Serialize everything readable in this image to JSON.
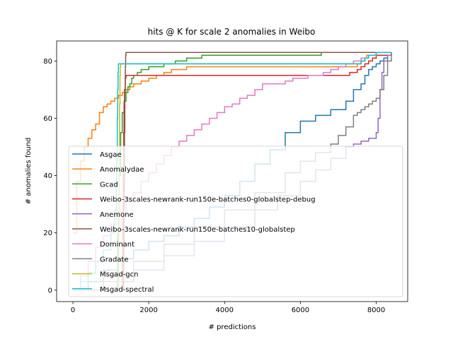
{
  "chart_data": {
    "type": "line",
    "title": "hits @ K for scale 2 anomalies in Weibo",
    "xlabel": "# predictions",
    "ylabel": "# anomalies found",
    "xlim": [
      -430,
      8830
    ],
    "ylim": [
      -4,
      87
    ],
    "xticks": [
      0,
      2000,
      4000,
      6000,
      8000
    ],
    "yticks": [
      0,
      20,
      40,
      60,
      80
    ],
    "grid": false,
    "legend_position": "lower-left",
    "series": [
      {
        "name": "Asgae",
        "color": "#1f77b4",
        "x": [
          0,
          400,
          800,
          1200,
          1600,
          2000,
          2400,
          2800,
          3200,
          3600,
          4000,
          4400,
          4800,
          5200,
          5600,
          6000,
          6400,
          6800,
          7200,
          7400,
          7600,
          7700,
          7800,
          7900,
          8000,
          8100,
          8200,
          8300,
          8400
        ],
        "y": [
          0,
          3,
          7,
          11,
          14,
          17,
          19,
          22,
          25,
          29,
          33,
          38,
          44,
          49,
          55,
          59,
          61,
          63,
          66,
          70,
          72,
          75,
          77,
          78,
          79,
          80,
          81,
          82,
          83
        ]
      },
      {
        "name": "Anomalydae",
        "color": "#ff7f0e",
        "x": [
          0,
          100,
          200,
          300,
          400,
          500,
          600,
          700,
          800,
          900,
          1000,
          1100,
          1200,
          1300,
          1400,
          1500,
          1600,
          1800,
          2000,
          2200,
          2400,
          2600,
          3000,
          3400,
          3800,
          4400,
          5000,
          6000,
          7000,
          7500,
          7600,
          7700,
          7750,
          8000,
          8300,
          8400
        ],
        "y": [
          20,
          38,
          45,
          50,
          53,
          56,
          58,
          62,
          64,
          65,
          66,
          67,
          68,
          69,
          70,
          71,
          72,
          73,
          74,
          75,
          76,
          77,
          78,
          78,
          78,
          78,
          78,
          78,
          78,
          79,
          80,
          81,
          82,
          83,
          83,
          83
        ]
      },
      {
        "name": "Gcad",
        "color": "#2ca02c",
        "x": [
          1150,
          1180,
          1220,
          1260,
          1300,
          1350,
          1400,
          1450,
          1500,
          1550,
          1600,
          1700,
          1800,
          1900,
          2000,
          2200,
          2400,
          2700,
          3000,
          3400,
          3800,
          4500,
          5500,
          6500,
          6550,
          7000,
          8000,
          8400
        ],
        "y": [
          0,
          20,
          40,
          55,
          62,
          66,
          69,
          71,
          72,
          74,
          75,
          76,
          77,
          77,
          78,
          78,
          79,
          80,
          81,
          82,
          82,
          82,
          82,
          82,
          83,
          83,
          83,
          83
        ]
      },
      {
        "name": "Weibo-3scales-newrank-run150e-batches0-globalstep-debug",
        "color": "#d62728",
        "x": [
          1300,
          1310,
          1320,
          1330,
          1340,
          1350,
          1360,
          1380,
          1400,
          1500,
          3000,
          5000,
          7000,
          7300,
          7500,
          7600,
          7700,
          7800,
          7900,
          8000,
          8400
        ],
        "y": [
          0,
          10,
          25,
          40,
          55,
          65,
          70,
          74,
          75,
          75,
          75,
          75,
          75,
          76,
          77,
          78,
          79,
          80,
          81,
          82,
          82
        ]
      },
      {
        "name": "Anemone",
        "color": "#9467bd",
        "x": [
          0,
          800,
          1600,
          2400,
          3200,
          4000,
          4800,
          5400,
          6000,
          6400,
          6800,
          7200,
          7400,
          7600,
          7800,
          7900,
          8000,
          8050,
          8100,
          8150,
          8200,
          8300,
          8400
        ],
        "y": [
          0,
          3,
          7,
          12,
          17,
          22,
          28,
          33,
          38,
          42,
          46,
          50,
          51,
          52,
          53,
          53,
          55,
          60,
          70,
          76,
          80,
          82,
          83
        ]
      },
      {
        "name": "Weibo-3scales-newrank-run150e-batches10-globalstep",
        "color": "#8c564b",
        "x": [
          1330,
          1340,
          1350,
          1360,
          1370,
          1380,
          1390,
          1400,
          2000,
          4000,
          6000,
          8000,
          8400
        ],
        "y": [
          0,
          15,
          35,
          55,
          70,
          78,
          82,
          83,
          83,
          83,
          83,
          83,
          83
        ]
      },
      {
        "name": "Dominant",
        "color": "#e377c2",
        "x": [
          0,
          200,
          400,
          600,
          800,
          1000,
          1200,
          1400,
          1600,
          1800,
          2000,
          2200,
          2400,
          2600,
          2800,
          3000,
          3200,
          3400,
          3600,
          3800,
          4000,
          4200,
          4400,
          4600,
          4800,
          5000,
          5200,
          5400,
          5600,
          5800,
          6000,
          6200,
          6400,
          6600,
          6800,
          7000,
          7200,
          7400,
          7600,
          7800,
          8000,
          8200,
          8400
        ],
        "y": [
          0,
          5,
          10,
          15,
          19,
          23,
          27,
          31,
          34,
          38,
          41,
          44,
          47,
          50,
          52,
          54,
          56,
          58,
          60,
          62,
          64,
          65,
          67,
          68,
          70,
          72,
          72,
          72,
          73,
          74,
          74,
          75,
          75,
          76,
          77,
          78,
          79,
          80,
          81,
          82,
          83,
          83,
          83
        ]
      },
      {
        "name": "Gradate",
        "color": "#7f7f7f",
        "x": [
          0,
          800,
          1600,
          2400,
          3200,
          4000,
          4800,
          5600,
          6000,
          6400,
          6800,
          7000,
          7200,
          7400,
          7500,
          7600,
          7700,
          7800,
          7900,
          8000,
          8100,
          8200,
          8300,
          8400
        ],
        "y": [
          0,
          5,
          10,
          16,
          22,
          28,
          34,
          41,
          45,
          48,
          51,
          54,
          57,
          61,
          62,
          63,
          64,
          65,
          66,
          67,
          70,
          75,
          80,
          83
        ]
      },
      {
        "name": "Msgad-gcn",
        "color": "#bcbd22",
        "x": [
          1200,
          1210,
          1220,
          1230,
          1240,
          1250,
          1260,
          1300,
          2000,
          4000,
          6000,
          7500,
          7600,
          7700,
          7800,
          8000,
          8400
        ],
        "y": [
          0,
          20,
          45,
          65,
          75,
          78,
          79,
          79,
          79,
          79,
          79,
          79,
          80,
          81,
          82,
          83,
          83
        ]
      },
      {
        "name": "Msgad-spectral",
        "color": "#17becf",
        "x": [
          0,
          200,
          400,
          600,
          800,
          1000,
          1100,
          1150,
          1170,
          1180,
          1190,
          1200,
          1300,
          2000,
          4000,
          6000,
          7500,
          7600,
          7700,
          7800,
          8000,
          8400
        ],
        "y": [
          0,
          3,
          6,
          10,
          14,
          20,
          28,
          45,
          60,
          70,
          76,
          79,
          79,
          79,
          79,
          79,
          79,
          80,
          81,
          82,
          83,
          83
        ]
      }
    ]
  }
}
